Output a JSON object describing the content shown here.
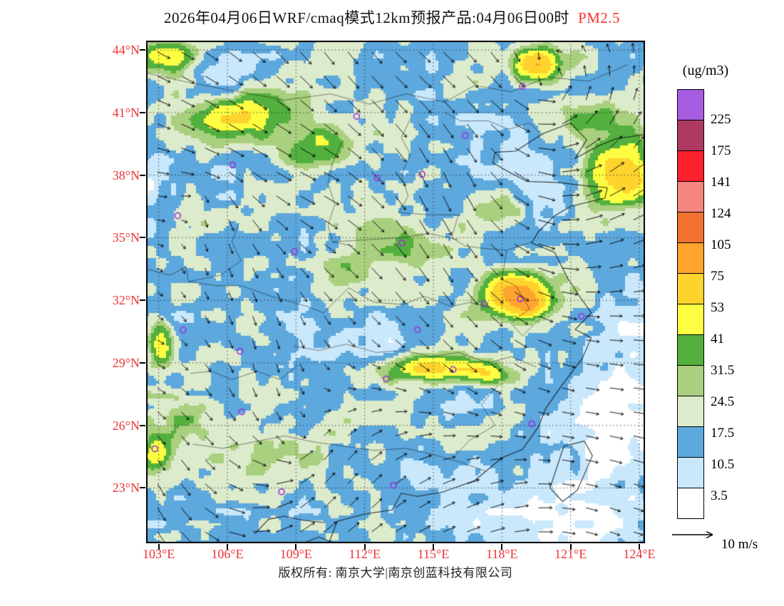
{
  "title": {
    "text": "2026年04月06日WRF/cmaq模式12km预报产品:04月06日00时",
    "pollutant": "PM2.5"
  },
  "footer": {
    "text": "版权所有: 南京大学|南京创蓝科技有限公司"
  },
  "colors": {
    "axis_label": "#ee3333",
    "title_highlight": "#fa3232",
    "station_marker": "#9b30d9",
    "map_frame": "#000000"
  },
  "axes": {
    "lat_ticks": [
      {
        "label": "44°N",
        "value": 44
      },
      {
        "label": "41°N",
        "value": 41
      },
      {
        "label": "38°N",
        "value": 38
      },
      {
        "label": "35°N",
        "value": 35
      },
      {
        "label": "32°N",
        "value": 32
      },
      {
        "label": "29°N",
        "value": 29
      },
      {
        "label": "26°N",
        "value": 26
      },
      {
        "label": "23°N",
        "value": 23
      }
    ],
    "lon_ticks": [
      {
        "label": "103°E",
        "value": 103
      },
      {
        "label": "106°E",
        "value": 106
      },
      {
        "label": "109°E",
        "value": 109
      },
      {
        "label": "112°E",
        "value": 112
      },
      {
        "label": "115°E",
        "value": 115
      },
      {
        "label": "118°E",
        "value": 118
      },
      {
        "label": "121°E",
        "value": 121
      },
      {
        "label": "124°E",
        "value": 124
      }
    ]
  },
  "map": {
    "domain": {
      "lon_min": 102.45,
      "lon_max": 124.25,
      "lat_min": 20.35,
      "lat_max": 44.45
    }
  },
  "legend": {
    "unit": "(ug/m3)",
    "tick_labels": [
      "225",
      "175",
      "141",
      "124",
      "105",
      "75",
      "53",
      "41",
      "31.5",
      "24.5",
      "17.5",
      "10.5",
      "3.5"
    ],
    "thresholds": [
      3.5,
      10.5,
      17.5,
      24.5,
      31.5,
      41,
      53,
      75,
      105,
      124,
      141,
      175,
      225
    ],
    "colors_bottom_to_top": [
      "#ffffff",
      "#c9e8fb",
      "#5da8dd",
      "#dcebcb",
      "#a9d07e",
      "#53b03e",
      "#fdfd42",
      "#ffd32e",
      "#ffa32f",
      "#f1722f",
      "#f5867f",
      "#fc1f2e",
      "#ae3a64",
      "#a75ce2"
    ]
  },
  "wind": {
    "scale_label": "10 m/s",
    "base": [
      0.9,
      0.25
    ],
    "vortices": [
      [
        0.8,
        0.1,
        -1.2,
        0.5
      ],
      [
        0.3,
        0.82,
        -0.7,
        0.45
      ],
      [
        0.12,
        0.3,
        0.6,
        0.4
      ]
    ],
    "jitter": 0.8,
    "grid": [
      21,
      21
    ]
  },
  "field": {
    "base": 16,
    "blobs": [
      [
        106.8,
        40.8,
        2.1,
        1.1,
        40
      ],
      [
        109.9,
        39.4,
        1.5,
        0.95,
        30
      ],
      [
        103.4,
        43.7,
        1.1,
        0.8,
        42
      ],
      [
        119.5,
        43.3,
        0.85,
        0.75,
        48
      ],
      [
        123.3,
        37.9,
        1.3,
        1.5,
        52
      ],
      [
        118.7,
        32.2,
        1.4,
        1.1,
        62
      ],
      [
        119.2,
        31.7,
        0.6,
        0.5,
        36
      ],
      [
        114.8,
        28.7,
        2.4,
        0.6,
        40
      ],
      [
        117.4,
        28.4,
        1.0,
        0.5,
        28
      ],
      [
        103.1,
        29.9,
        0.6,
        1.1,
        36
      ],
      [
        102.9,
        24.7,
        0.7,
        0.9,
        40
      ],
      [
        104.6,
        36.0,
        1.3,
        0.9,
        14
      ],
      [
        112.8,
        34.2,
        2.8,
        1.7,
        14
      ],
      [
        117.6,
        36.4,
        1.7,
        1.1,
        18
      ],
      [
        121.9,
        40.8,
        1.7,
        1.1,
        22
      ],
      [
        108.0,
        24.2,
        2.0,
        1.3,
        10
      ],
      [
        103.9,
        26.4,
        1.3,
        1.2,
        14
      ],
      [
        123.2,
        26.2,
        3.0,
        2.8,
        -18
      ],
      [
        120.5,
        21.2,
        4.5,
        2.0,
        -15
      ],
      [
        123.9,
        31.4,
        2.0,
        2.0,
        -11
      ],
      [
        111.6,
        29.9,
        2.6,
        1.4,
        -9
      ],
      [
        118.8,
        37.6,
        2.0,
        1.5,
        -7
      ],
      [
        102.7,
        37.3,
        0.9,
        1.9,
        -12
      ],
      [
        105.7,
        42.7,
        1.2,
        0.7,
        -10
      ],
      [
        114.6,
        23.8,
        2.4,
        1.1,
        -7
      ],
      [
        117.0,
        40.5,
        1.8,
        1.0,
        -6
      ]
    ]
  },
  "stations": [
    [
      111.65,
      40.82
    ],
    [
      118.89,
      42.26
    ],
    [
      116.4,
      39.9
    ],
    [
      114.51,
      38.04
    ],
    [
      112.55,
      37.87
    ],
    [
      106.23,
      38.49
    ],
    [
      103.83,
      36.06
    ],
    [
      108.94,
      34.34
    ],
    [
      113.63,
      34.75
    ],
    [
      117.23,
      31.82
    ],
    [
      118.8,
      32.06
    ],
    [
      114.31,
      30.59
    ],
    [
      104.07,
      30.57
    ],
    [
      106.55,
      29.56
    ],
    [
      112.94,
      28.23
    ],
    [
      115.86,
      28.68
    ],
    [
      106.63,
      26.65
    ],
    [
      119.3,
      26.08
    ],
    [
      102.83,
      24.88
    ],
    [
      113.26,
      23.13
    ],
    [
      108.37,
      22.82
    ],
    [
      121.47,
      31.23
    ]
  ],
  "geo": {
    "coast": [
      [
        [
          124.25,
          39.95
        ],
        [
          123.0,
          39.75
        ],
        [
          122.2,
          39.4
        ],
        [
          121.2,
          38.8
        ],
        [
          121.7,
          39.7
        ],
        [
          121.0,
          40.5
        ],
        [
          119.8,
          40.0
        ],
        [
          118.6,
          39.15
        ],
        [
          117.7,
          39.1
        ],
        [
          117.6,
          38.6
        ],
        [
          118.3,
          38.15
        ],
        [
          119.1,
          37.7
        ],
        [
          120.4,
          37.65
        ],
        [
          121.6,
          37.5
        ],
        [
          122.6,
          37.4
        ],
        [
          122.5,
          36.9
        ],
        [
          121.0,
          36.5
        ],
        [
          120.3,
          36.05
        ],
        [
          119.6,
          35.3
        ],
        [
          119.3,
          34.75
        ],
        [
          120.3,
          34.3
        ],
        [
          120.9,
          33.0
        ],
        [
          121.45,
          32.1
        ],
        [
          121.9,
          31.4
        ],
        [
          121.2,
          30.6
        ],
        [
          121.9,
          30.2
        ],
        [
          121.5,
          29.2
        ],
        [
          120.6,
          27.9
        ],
        [
          119.9,
          26.8
        ],
        [
          119.6,
          25.95
        ],
        [
          118.9,
          24.85
        ],
        [
          118.0,
          24.45
        ],
        [
          116.8,
          23.35
        ],
        [
          115.4,
          22.8
        ],
        [
          114.3,
          22.6
        ],
        [
          113.6,
          22.75
        ],
        [
          113.2,
          21.95
        ],
        [
          112.0,
          21.75
        ],
        [
          110.8,
          21.4
        ],
        [
          110.45,
          20.4
        ]
      ],
      [
        [
          110.2,
          21.35
        ],
        [
          109.3,
          21.45
        ],
        [
          108.5,
          21.65
        ],
        [
          107.8,
          21.5
        ],
        [
          107.2,
          20.8
        ]
      ],
      [
        [
          120.1,
          23.0
        ],
        [
          120.7,
          25.0
        ],
        [
          121.6,
          25.25
        ],
        [
          121.95,
          24.55
        ],
        [
          121.3,
          22.9
        ],
        [
          120.65,
          22.35
        ],
        [
          120.1,
          23.0
        ]
      ],
      [
        [
          109.3,
          20.35
        ],
        [
          110.0,
          20.65
        ],
        [
          110.7,
          20.35
        ]
      ]
    ],
    "borders": [
      [
        [
          102.45,
          42.9
        ],
        [
          104.5,
          42.4
        ],
        [
          106.5,
          42.0
        ],
        [
          108.5,
          41.6
        ],
        [
          110.5,
          41.9
        ],
        [
          112.2,
          41.4
        ],
        [
          113.8,
          41.9
        ],
        [
          115.5,
          41.5
        ],
        [
          116.8,
          42.3
        ],
        [
          118.4,
          42.0
        ],
        [
          120.0,
          42.7
        ],
        [
          121.8,
          42.5
        ],
        [
          123.5,
          43.3
        ]
      ],
      [
        [
          111.0,
          39.6
        ],
        [
          110.6,
          38.6
        ],
        [
          110.4,
          37.6
        ],
        [
          110.7,
          36.6
        ],
        [
          110.4,
          35.6
        ],
        [
          110.6,
          34.8
        ],
        [
          111.5,
          34.6
        ]
      ],
      [
        [
          114.0,
          40.7
        ],
        [
          113.6,
          39.8
        ],
        [
          114.0,
          39.0
        ],
        [
          113.6,
          38.0
        ],
        [
          113.9,
          37.0
        ],
        [
          113.5,
          36.2
        ]
      ],
      [
        [
          113.5,
          36.2
        ],
        [
          114.8,
          36.1
        ],
        [
          116.1,
          36.1
        ],
        [
          115.8,
          35.0
        ],
        [
          116.4,
          34.6
        ],
        [
          117.1,
          34.5
        ],
        [
          118.2,
          34.4
        ],
        [
          119.3,
          34.8
        ]
      ],
      [
        [
          104.3,
          32.9
        ],
        [
          105.5,
          32.7
        ],
        [
          106.6,
          32.7
        ],
        [
          107.9,
          32.2
        ],
        [
          109.5,
          31.7
        ],
        [
          110.2,
          31.4
        ],
        [
          111.3,
          32.6
        ],
        [
          112.4,
          31.9
        ],
        [
          113.7,
          31.8
        ],
        [
          114.6,
          32.2
        ],
        [
          115.8,
          31.7
        ],
        [
          116.6,
          31.9
        ],
        [
          117.7,
          31.6
        ]
      ],
      [
        [
          108.9,
          29.8
        ],
        [
          110.0,
          29.6
        ],
        [
          111.2,
          29.9
        ],
        [
          112.5,
          29.5
        ],
        [
          113.7,
          29.6
        ],
        [
          114.9,
          29.3
        ],
        [
          116.1,
          29.5
        ],
        [
          117.4,
          29.0
        ],
        [
          118.4,
          29.3
        ],
        [
          119.5,
          28.8
        ]
      ],
      [
        [
          104.5,
          25.1
        ],
        [
          105.8,
          24.9
        ],
        [
          107.1,
          25.2
        ],
        [
          108.5,
          25.5
        ],
        [
          109.8,
          25.2
        ],
        [
          111.1,
          25.0
        ],
        [
          112.4,
          24.8
        ],
        [
          113.8,
          24.9
        ],
        [
          115.0,
          24.6
        ],
        [
          116.3,
          24.2
        ],
        [
          117.3,
          23.8
        ]
      ],
      [
        [
          104.4,
          28.5
        ],
        [
          105.3,
          28.6
        ],
        [
          106.2,
          28.2
        ],
        [
          107.3,
          28.6
        ],
        [
          108.3,
          28.2
        ],
        [
          109.1,
          28.9
        ]
      ],
      [
        [
          117.8,
          27.9
        ],
        [
          117.1,
          27.0
        ],
        [
          117.7,
          26.0
        ],
        [
          116.6,
          25.3
        ],
        [
          116.0,
          24.6
        ]
      ],
      [
        [
          118.2,
          34.4
        ],
        [
          118.0,
          33.0
        ],
        [
          118.6,
          32.7
        ],
        [
          119.2,
          31.6
        ],
        [
          118.4,
          30.9
        ],
        [
          118.9,
          30.3
        ],
        [
          119.65,
          31.1
        ]
      ],
      [
        [
          106.5,
          35.7
        ],
        [
          106.2,
          34.8
        ],
        [
          106.6,
          33.9
        ],
        [
          105.7,
          33.2
        ],
        [
          104.3,
          32.9
        ]
      ],
      [
        [
          115.5,
          41.0
        ],
        [
          116.2,
          40.6
        ],
        [
          117.4,
          40.6
        ],
        [
          118.3,
          40.2
        ],
        [
          119.2,
          40.5
        ],
        [
          119.8,
          39.9
        ]
      ],
      [
        [
          102.45,
          33.5
        ],
        [
          103.5,
          33.2
        ],
        [
          104.2,
          33.6
        ],
        [
          104.3,
          32.9
        ]
      ],
      [
        [
          110.6,
          34.8
        ],
        [
          112.0,
          34.9
        ],
        [
          113.6,
          35.0
        ],
        [
          114.8,
          35.2
        ],
        [
          116.1,
          34.9
        ]
      ]
    ]
  }
}
